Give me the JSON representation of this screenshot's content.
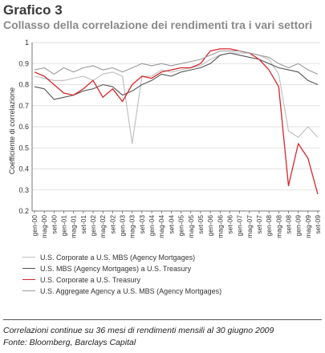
{
  "header": {
    "title": "Grafico 3",
    "subtitle": "Collasso della correlazione dei rendimenti tra i vari settori"
  },
  "footer": {
    "note": "Correlazioni continue su 36 mesi di rendimenti mensili al 30 giugno 2009",
    "source": "Fonte: Bloomberg, Barclays Capital"
  },
  "chart_data": {
    "type": "line",
    "title": "Grafico 3",
    "subtitle": "Collasso della correlazione dei rendimenti tra i vari settori",
    "ylabel": "Coefficiente di correlazione",
    "xlabel": "",
    "ylim": [
      0.2,
      1
    ],
    "yticks": [
      "0.2",
      "0.3",
      "0.4",
      "0.5",
      "0.6",
      "0.7",
      "0.8",
      "0.9",
      "1"
    ],
    "grid": true,
    "legend_position": "bottom",
    "categories": [
      "gen-00",
      "mag-00",
      "set-00",
      "gen-01",
      "mag-01",
      "set-01",
      "gen-02",
      "mag-02",
      "set-02",
      "gen-03",
      "mag-03",
      "set-03",
      "gen-04",
      "mag-04",
      "set-04",
      "gen-05",
      "mag-05",
      "set-05",
      "gen-06",
      "mag-06",
      "set-06",
      "gen-07",
      "mag-07",
      "set-07",
      "gen-08",
      "mag-08",
      "set-08",
      "gen-09",
      "mag-09",
      "set-09"
    ],
    "series": [
      {
        "name": "U.S. Corporate a U.S. MBS (Agency Mortgages)",
        "color": "#bdbdbd",
        "values": [
          0.84,
          0.83,
          0.82,
          0.82,
          0.83,
          0.84,
          0.82,
          0.85,
          0.86,
          0.84,
          0.52,
          0.84,
          0.84,
          0.87,
          0.86,
          0.87,
          0.88,
          0.89,
          0.92,
          0.94,
          0.95,
          0.95,
          0.95,
          0.94,
          0.92,
          0.85,
          0.58,
          0.55,
          0.6,
          0.55
        ]
      },
      {
        "name": "U.S. MBS (Agency Mortgages) a U.S. Treasury",
        "color": "#555555",
        "values": [
          0.79,
          0.78,
          0.73,
          0.74,
          0.75,
          0.77,
          0.78,
          0.8,
          0.79,
          0.75,
          0.77,
          0.8,
          0.82,
          0.85,
          0.84,
          0.86,
          0.87,
          0.88,
          0.9,
          0.94,
          0.95,
          0.94,
          0.93,
          0.92,
          0.9,
          0.88,
          0.87,
          0.86,
          0.82,
          0.8
        ]
      },
      {
        "name": "U.S. Corporate a U.S. Treasury",
        "color": "#d7262c",
        "values": [
          0.86,
          0.84,
          0.8,
          0.76,
          0.75,
          0.78,
          0.82,
          0.74,
          0.78,
          0.72,
          0.8,
          0.84,
          0.83,
          0.86,
          0.87,
          0.88,
          0.88,
          0.9,
          0.96,
          0.97,
          0.97,
          0.96,
          0.95,
          0.92,
          0.87,
          0.79,
          0.32,
          0.52,
          0.45,
          0.28
        ]
      },
      {
        "name": "U.S. Aggregate Agency a U.S. MBS (Agency Mortgages)",
        "color": "#9a9a9a",
        "values": [
          0.87,
          0.88,
          0.85,
          0.88,
          0.86,
          0.88,
          0.89,
          0.87,
          0.88,
          0.86,
          0.88,
          0.9,
          0.89,
          0.9,
          0.89,
          0.9,
          0.91,
          0.92,
          0.94,
          0.96,
          0.96,
          0.96,
          0.95,
          0.94,
          0.93,
          0.9,
          0.88,
          0.9,
          0.87,
          0.85
        ]
      }
    ]
  }
}
